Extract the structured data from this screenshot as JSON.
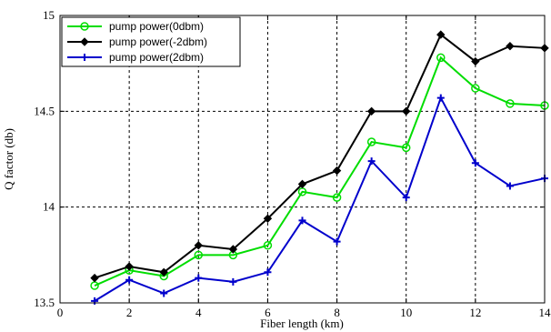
{
  "chart_data": {
    "type": "line",
    "title": "",
    "xlabel": "Fiber length (km)",
    "ylabel": "Q factor (db)",
    "xlim": [
      0,
      14
    ],
    "ylim": [
      13.5,
      15
    ],
    "x_ticks": [
      0,
      2,
      4,
      6,
      8,
      10,
      12,
      14
    ],
    "y_ticks": [
      13.5,
      14,
      14.5,
      15
    ],
    "x_tick_labels": [
      "0",
      "2",
      "4",
      "6",
      "8",
      "10",
      "12",
      "14"
    ],
    "y_tick_labels": [
      "13.5",
      "14",
      "14.5",
      "15"
    ],
    "grid": true,
    "legend_position": "top-left",
    "x": [
      1,
      2,
      3,
      4,
      5,
      6,
      7,
      8,
      9,
      10,
      11,
      12,
      13,
      14
    ],
    "series": [
      {
        "name": "pump power(0dbm)",
        "color": "#00dd00",
        "marker": "circle",
        "values": [
          13.59,
          13.67,
          13.64,
          13.75,
          13.75,
          13.8,
          14.08,
          14.05,
          14.34,
          14.31,
          14.78,
          14.62,
          14.54,
          14.53
        ]
      },
      {
        "name": "pump power(-2dbm)",
        "color": "#000000",
        "marker": "diamond",
        "values": [
          13.63,
          13.69,
          13.66,
          13.8,
          13.78,
          13.94,
          14.12,
          14.19,
          14.5,
          14.5,
          14.9,
          14.76,
          14.84,
          14.83
        ]
      },
      {
        "name": "pump power(2dbm)",
        "color": "#0000cc",
        "marker": "plus",
        "values": [
          13.51,
          13.62,
          13.55,
          13.63,
          13.61,
          13.66,
          13.93,
          13.82,
          14.24,
          14.05,
          14.57,
          14.23,
          14.11,
          14.15
        ]
      }
    ]
  }
}
